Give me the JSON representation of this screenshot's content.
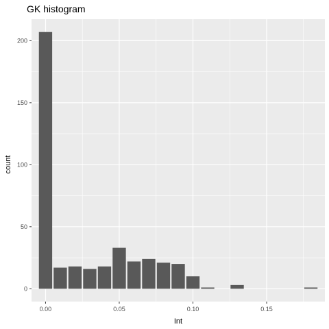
{
  "chart_data": {
    "type": "bar",
    "title": "GK histogram",
    "xlabel": "Int",
    "ylabel": "count",
    "x": [
      0.0,
      0.01,
      0.02,
      0.03,
      0.04,
      0.05,
      0.06,
      0.07,
      0.08,
      0.09,
      0.1,
      0.11,
      0.12,
      0.13,
      0.14,
      0.15,
      0.16,
      0.17,
      0.18
    ],
    "values": [
      207,
      17,
      18,
      16,
      18,
      33,
      22,
      24,
      21,
      20,
      10,
      1,
      0,
      3,
      0,
      0,
      0,
      0,
      1
    ],
    "xlim": [
      -0.0095,
      0.1895
    ],
    "ylim": [
      -10.35,
      217.35
    ],
    "x_ticks": [
      0.0,
      0.05,
      0.1,
      0.15
    ],
    "x_tick_labels": [
      "0.00",
      "0.05",
      "0.10",
      "0.15"
    ],
    "y_ticks": [
      0,
      50,
      100,
      150,
      200
    ],
    "y_tick_labels": [
      "0",
      "50",
      "100",
      "150",
      "200"
    ],
    "grid": true,
    "colors": {
      "panel_background": "#ebebeb",
      "grid_major": "#ffffff",
      "bar_fill": "#595959",
      "tick_label": "#4d4d4d",
      "tick_mark": "#333333"
    }
  }
}
